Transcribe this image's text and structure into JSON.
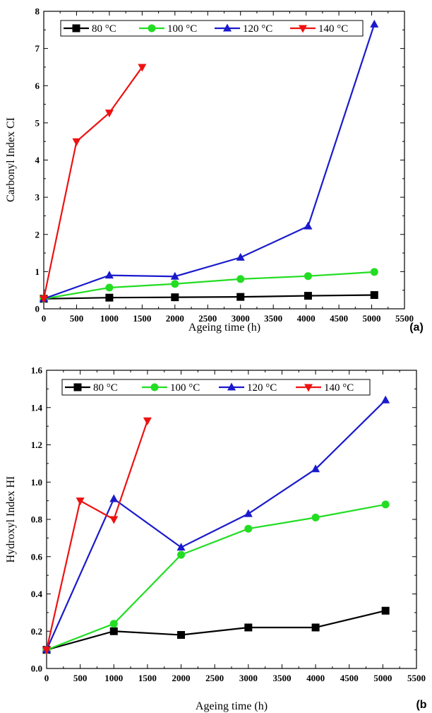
{
  "chart_data": [
    {
      "type": "line",
      "panel_label": "(a)",
      "xlabel": "Ageing time (h)",
      "ylabel": "Carbonyl Index CI",
      "xlim": [
        0,
        5500
      ],
      "ylim": [
        0,
        8
      ],
      "xticks": [
        0,
        500,
        1000,
        1500,
        2000,
        2500,
        3000,
        3500,
        4000,
        4500,
        5000,
        5500
      ],
      "yticks": [
        0,
        1,
        2,
        3,
        4,
        5,
        6,
        7,
        8
      ],
      "grid": false,
      "legend_position": "top",
      "series": [
        {
          "name": "80 °C",
          "color": "#000000",
          "marker": "square",
          "x": [
            0,
            1000,
            2000,
            3000,
            4030,
            5040
          ],
          "y": [
            0.27,
            0.3,
            0.31,
            0.32,
            0.35,
            0.37
          ]
        },
        {
          "name": "100 °C",
          "color": "#22dd22",
          "marker": "circle",
          "x": [
            0,
            1000,
            2000,
            3000,
            4030,
            5040
          ],
          "y": [
            0.27,
            0.57,
            0.67,
            0.8,
            0.88,
            0.99
          ]
        },
        {
          "name": "120 °C",
          "color": "#1a1acc",
          "marker": "triangle-up",
          "x": [
            0,
            1000,
            2000,
            3000,
            4030,
            5040
          ],
          "y": [
            0.27,
            0.9,
            0.87,
            1.38,
            2.22,
            7.65
          ]
        },
        {
          "name": "140 °C",
          "color": "#ee1111",
          "marker": "triangle-down",
          "x": [
            0,
            500,
            1000,
            1500
          ],
          "y": [
            0.27,
            4.5,
            5.27,
            6.5
          ]
        }
      ]
    },
    {
      "type": "line",
      "panel_label": "(b",
      "xlabel": "Ageing time (h)",
      "ylabel": "Hydroxyl Index HI",
      "xlim": [
        0,
        5500
      ],
      "ylim": [
        0,
        1.6
      ],
      "xticks": [
        0,
        500,
        1000,
        1500,
        2000,
        2500,
        3000,
        3500,
        4000,
        4500,
        5000,
        5500
      ],
      "yticks": [
        0.0,
        0.2,
        0.4,
        0.6,
        0.8,
        1.0,
        1.2,
        1.4,
        1.6
      ],
      "ytick_labels": [
        "0.0",
        "0.2",
        "0.4",
        "0.6",
        "0.8",
        "1.0",
        "1.2",
        "1.4",
        "1.6"
      ],
      "grid": false,
      "legend_position": "top",
      "series": [
        {
          "name": "80 °C",
          "color": "#000000",
          "marker": "square",
          "x": [
            0,
            1000,
            2000,
            3000,
            4000,
            5040
          ],
          "y": [
            0.1,
            0.2,
            0.18,
            0.22,
            0.22,
            0.31
          ]
        },
        {
          "name": "100 °C",
          "color": "#22dd22",
          "marker": "circle",
          "x": [
            0,
            1000,
            2000,
            3000,
            4000,
            5040
          ],
          "y": [
            0.1,
            0.24,
            0.61,
            0.75,
            0.81,
            0.88
          ]
        },
        {
          "name": "120 °C",
          "color": "#1a1acc",
          "marker": "triangle-up",
          "x": [
            0,
            1000,
            2000,
            3000,
            4000,
            5040
          ],
          "y": [
            0.1,
            0.91,
            0.65,
            0.83,
            1.07,
            1.44
          ]
        },
        {
          "name": "140 °C",
          "color": "#ee1111",
          "marker": "triangle-down",
          "x": [
            0,
            500,
            1000,
            1500
          ],
          "y": [
            0.1,
            0.9,
            0.8,
            1.33
          ]
        }
      ]
    }
  ]
}
